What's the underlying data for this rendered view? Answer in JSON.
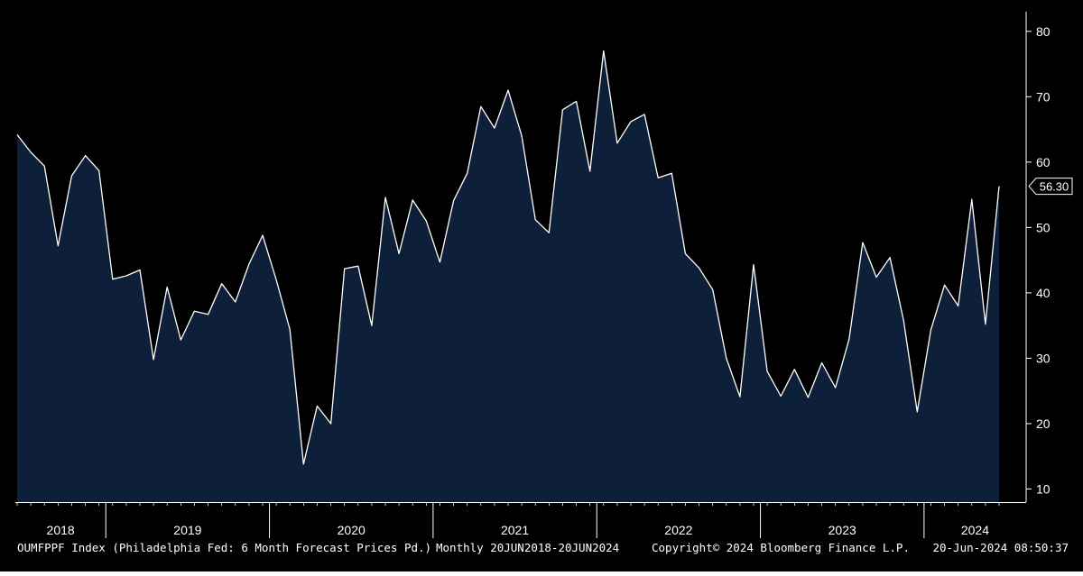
{
  "chart_data": {
    "type": "area",
    "frequency": "Monthly",
    "x": [
      "2018-06",
      "2018-07",
      "2018-08",
      "2018-09",
      "2018-10",
      "2018-11",
      "2018-12",
      "2019-01",
      "2019-02",
      "2019-03",
      "2019-04",
      "2019-05",
      "2019-06",
      "2019-07",
      "2019-08",
      "2019-09",
      "2019-10",
      "2019-11",
      "2019-12",
      "2020-01",
      "2020-02",
      "2020-03",
      "2020-04",
      "2020-05",
      "2020-06",
      "2020-07",
      "2020-08",
      "2020-09",
      "2020-10",
      "2020-11",
      "2020-12",
      "2021-01",
      "2021-02",
      "2021-03",
      "2021-04",
      "2021-05",
      "2021-06",
      "2021-07",
      "2021-08",
      "2021-09",
      "2021-10",
      "2021-11",
      "2021-12",
      "2022-01",
      "2022-02",
      "2022-03",
      "2022-04",
      "2022-05",
      "2022-06",
      "2022-07",
      "2022-08",
      "2022-09",
      "2022-10",
      "2022-11",
      "2022-12",
      "2023-01",
      "2023-02",
      "2023-03",
      "2023-04",
      "2023-05",
      "2023-06",
      "2023-07",
      "2023-08",
      "2023-09",
      "2023-10",
      "2023-11",
      "2023-12",
      "2024-01",
      "2024-02",
      "2024-03",
      "2024-04",
      "2024-05",
      "2024-06"
    ],
    "series": [
      {
        "name": "",
        "values": [
          64.2,
          61.5,
          59.4,
          47.2,
          57.9,
          61.0,
          58.7,
          42.1,
          42.6,
          43.5,
          29.8,
          40.9,
          32.8,
          37.2,
          36.7,
          41.4,
          38.6,
          44.4,
          48.8,
          42.0,
          34.4,
          13.8,
          22.7,
          20.0,
          43.7,
          44.1,
          35.0,
          54.6,
          46.0,
          54.2,
          51.0,
          44.7,
          54.1,
          58.3,
          68.5,
          65.2,
          71.0,
          64.0,
          51.2,
          49.2,
          68.0,
          69.3,
          58.6,
          77.0,
          62.9,
          66.2,
          67.3,
          57.6,
          58.3,
          46.0,
          43.8,
          40.5,
          30.0,
          24.1,
          44.3,
          28.0,
          24.2,
          28.3,
          24.0,
          29.3,
          25.5,
          32.9,
          47.7,
          42.4,
          45.4,
          35.8,
          21.8,
          34.3,
          41.2,
          38.0,
          54.3,
          35.2,
          56.3
        ]
      }
    ],
    "ylim": [
      8,
      83
    ],
    "y_ticks": [
      10,
      20,
      30,
      40,
      50,
      60,
      70,
      80
    ],
    "year_labels": [
      "2018",
      "2019",
      "2020",
      "2021",
      "2022",
      "2023",
      "2024"
    ],
    "last_value_label": "56.30",
    "grid": false,
    "background_color": "#000000",
    "fill_color": "#0e1f3a",
    "line_color": "#ffffff",
    "footer": {
      "ticker": "OUMFPPF Index (Philadelphia Fed: 6 Month Forecast Prices Pd.)",
      "range": "Monthly 20JUN2018-20JUN2024",
      "copyright": "Copyright© 2024 Bloomberg Finance L.P.",
      "timestamp": "20-Jun-2024 08:50:37"
    }
  }
}
